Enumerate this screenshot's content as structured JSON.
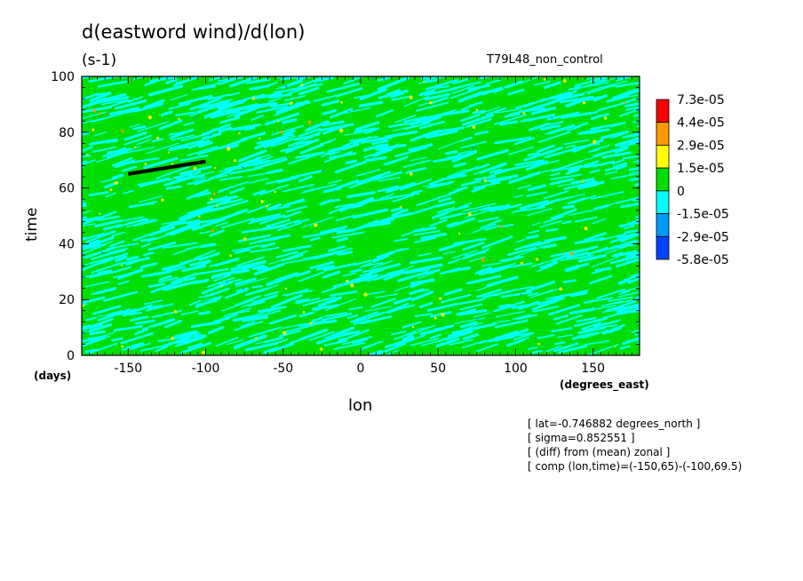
{
  "header": {
    "title": "d(eastword wind)/d(lon)",
    "units": "(s-1)",
    "run_name": "T79L48_non_control"
  },
  "notes": [
    "[ lat=-0.746882 degrees_north ]",
    "[ sigma=0.852551 ]",
    "[ (diff) from (mean) zonal ]",
    "[ comp (lon,time)=(-150,65)-(-100,69.5)"
  ],
  "chart_data": {
    "type": "heatmap",
    "title": "d(eastword wind)/d(lon)",
    "units": "(s-1)",
    "xlabel": "lon",
    "xunit": "(degrees_east)",
    "ylabel": "time",
    "yunit": "(days)",
    "xlim": [
      -180,
      180
    ],
    "ylim": [
      0,
      100
    ],
    "xticks": [
      "-150",
      "-100",
      "-50",
      "0",
      "50",
      "100",
      "150"
    ],
    "yticks": [
      "0",
      "20",
      "40",
      "60",
      "80",
      "100"
    ],
    "xtick_values": [
      -150,
      -100,
      -50,
      0,
      50,
      100,
      150
    ],
    "ytick_values": [
      0,
      20,
      40,
      60,
      80,
      100
    ],
    "colorbar": {
      "labels": [
        "7.3e-05",
        "4.4e-05",
        "2.9e-05",
        "1.5e-05",
        "0",
        "-1.5e-05",
        "-2.9e-05",
        "-5.8e-05"
      ],
      "colors": [
        "#ff0000",
        "#ff9900",
        "#ffff00",
        "#00dd00",
        "#00ffff",
        "#0099ff",
        "#0044ff"
      ]
    },
    "composite_line": {
      "x": [
        -150,
        -100
      ],
      "y": [
        65,
        69.5
      ]
    },
    "field_description": "alternating positive (green) and negative (cyan) streaks tilted upward to the right, with sparse yellow/orange spots"
  }
}
